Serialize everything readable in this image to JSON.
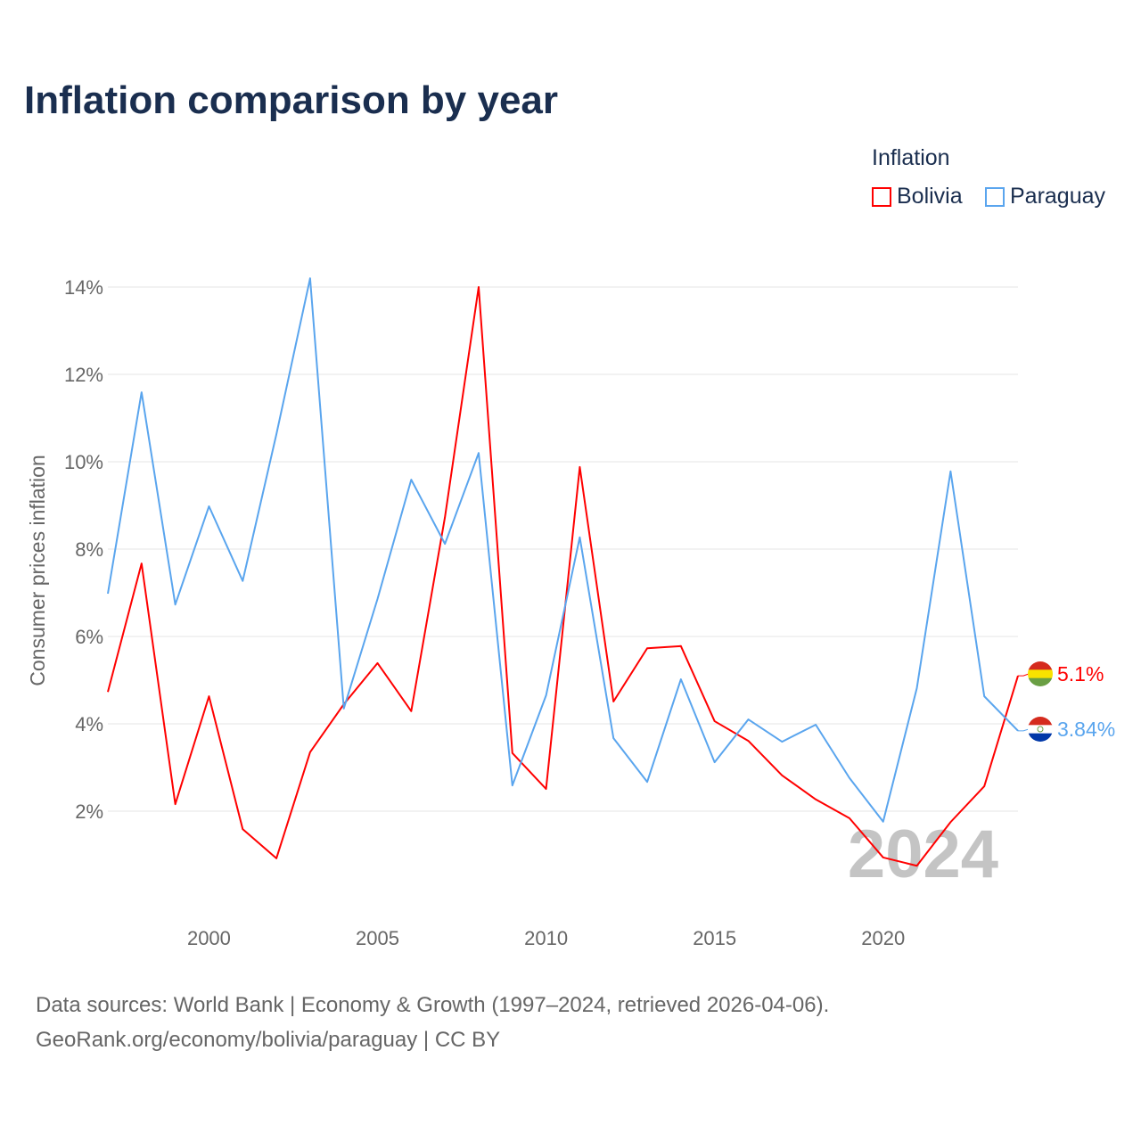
{
  "title": "Inflation comparison by year",
  "legend": {
    "title": "Inflation",
    "items": [
      {
        "label": "Bolivia",
        "color": "#ff0000"
      },
      {
        "label": "Paraguay",
        "color": "#5aa5ee"
      }
    ]
  },
  "footer": {
    "line1": "Data sources: World Bank | Economy & Growth (1997–2024, retrieved 2026-04-06).",
    "line2": "GeoRank.org/economy/bolivia/paraguay | CC BY"
  },
  "chart_data": {
    "type": "line",
    "title": "Inflation comparison by year",
    "xlabel": "",
    "ylabel": "Consumer prices inflation",
    "watermark": "2024",
    "xlim": [
      1997,
      2024
    ],
    "ylim": [
      0,
      14.3
    ],
    "xticks": [
      2000,
      2005,
      2010,
      2015,
      2020
    ],
    "yticks": [
      2,
      4,
      6,
      8,
      10,
      12,
      14
    ],
    "ytick_labels": [
      "2%",
      "4%",
      "6%",
      "8%",
      "10%",
      "12%",
      "14%"
    ],
    "grid": true,
    "legend_position": "top-right",
    "x": [
      1997,
      1998,
      1999,
      2000,
      2001,
      2002,
      2003,
      2004,
      2005,
      2006,
      2007,
      2008,
      2009,
      2010,
      2011,
      2012,
      2013,
      2014,
      2015,
      2016,
      2017,
      2018,
      2019,
      2020,
      2021,
      2022,
      2023,
      2024
    ],
    "series": [
      {
        "name": "Bolivia",
        "color": "#ff0000",
        "end_label": "5.1%",
        "values": [
          4.73,
          7.67,
          2.16,
          4.63,
          1.59,
          0.92,
          3.35,
          4.45,
          5.39,
          4.29,
          8.73,
          14.0,
          3.33,
          2.51,
          9.88,
          4.51,
          5.73,
          5.78,
          4.06,
          3.61,
          2.82,
          2.27,
          1.84,
          0.94,
          0.75,
          1.75,
          2.57,
          5.1
        ]
      },
      {
        "name": "Paraguay",
        "color": "#5aa5ee",
        "end_label": "3.84%",
        "values": [
          6.98,
          11.59,
          6.73,
          8.98,
          7.27,
          10.63,
          14.2,
          4.35,
          6.86,
          9.59,
          8.12,
          10.2,
          2.59,
          4.65,
          8.27,
          3.67,
          2.67,
          5.02,
          3.12,
          4.1,
          3.59,
          3.98,
          2.76,
          1.76,
          4.82,
          9.78,
          4.63,
          3.84
        ]
      }
    ]
  }
}
